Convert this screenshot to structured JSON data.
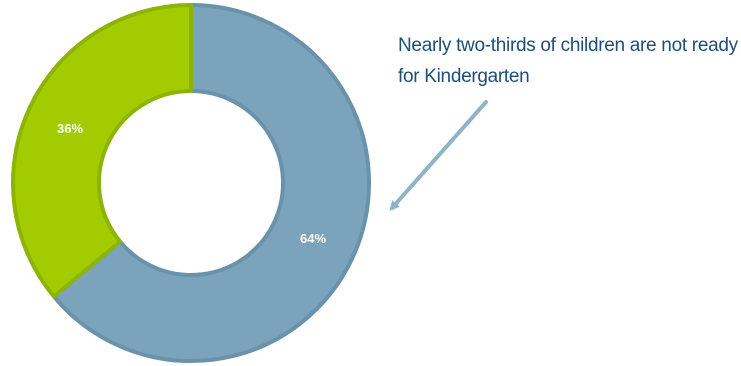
{
  "chart_data": {
    "type": "pie",
    "variant": "donut",
    "slices": [
      {
        "label": "64%",
        "value": 64,
        "color": "#7ba3bb",
        "edge": "#6a93ab"
      },
      {
        "label": "36%",
        "value": 36,
        "color": "#a2cc00",
        "edge": "#8db400"
      }
    ],
    "annotation": {
      "line1": "Nearly two-thirds of children are not ready",
      "line2": "for Kindergarten",
      "color": "#1f4e79",
      "arrow_color": "#8fb4c8"
    }
  }
}
